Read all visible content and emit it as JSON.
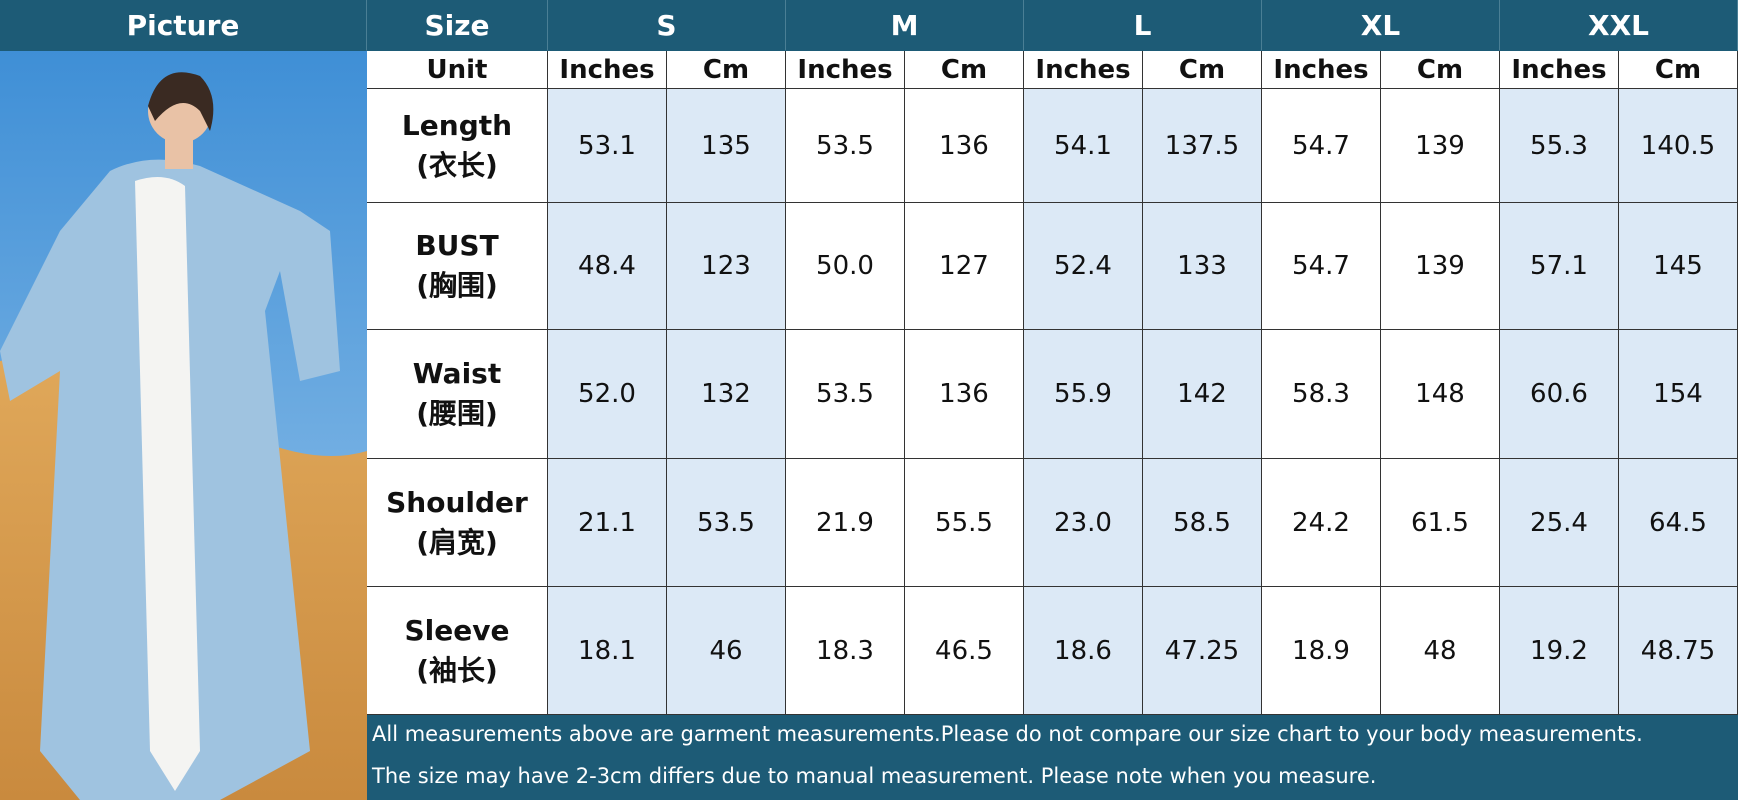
{
  "header": {
    "picture": "Picture",
    "size": "Size",
    "sizes": [
      "S",
      "M",
      "L",
      "XL",
      "XXL"
    ]
  },
  "unit_row": {
    "label": "Unit",
    "units": [
      "Inches",
      "Cm",
      "Inches",
      "Cm",
      "Inches",
      "Cm",
      "Inches",
      "Cm",
      "Inches",
      "Cm"
    ]
  },
  "rows": [
    {
      "label": "Length",
      "label_cn": "(衣长)",
      "values": [
        "53.1",
        "135",
        "53.5",
        "136",
        "54.1",
        "137.5",
        "54.7",
        "139",
        "55.3",
        "140.5"
      ]
    },
    {
      "label": "BUST",
      "label_cn": "(胸围)",
      "values": [
        "48.4",
        "123",
        "50.0",
        "127",
        "52.4",
        "133",
        "54.7",
        "139",
        "57.1",
        "145"
      ]
    },
    {
      "label": "Waist",
      "label_cn": "(腰围)",
      "values": [
        "52.0",
        "132",
        "53.5",
        "136",
        "55.9",
        "142",
        "58.3",
        "148",
        "60.6",
        "154"
      ]
    },
    {
      "label": "Shoulder",
      "label_cn": "(肩宽)",
      "values": [
        "21.1",
        "53.5",
        "21.9",
        "55.5",
        "23.0",
        "58.5",
        "24.2",
        "61.5",
        "25.4",
        "64.5"
      ]
    },
    {
      "label": "Sleeve",
      "label_cn": "(袖长)",
      "values": [
        "18.1",
        "46",
        "18.3",
        "46.5",
        "18.6",
        "47.25",
        "18.9",
        "48",
        "19.2",
        "48.75"
      ]
    }
  ],
  "notes": [
    "All measurements above are garment measurements.Please do not compare our size chart to your body measurements.",
    "The size may have 2-3cm differs due to manual measurement. Please note when you measure."
  ]
}
